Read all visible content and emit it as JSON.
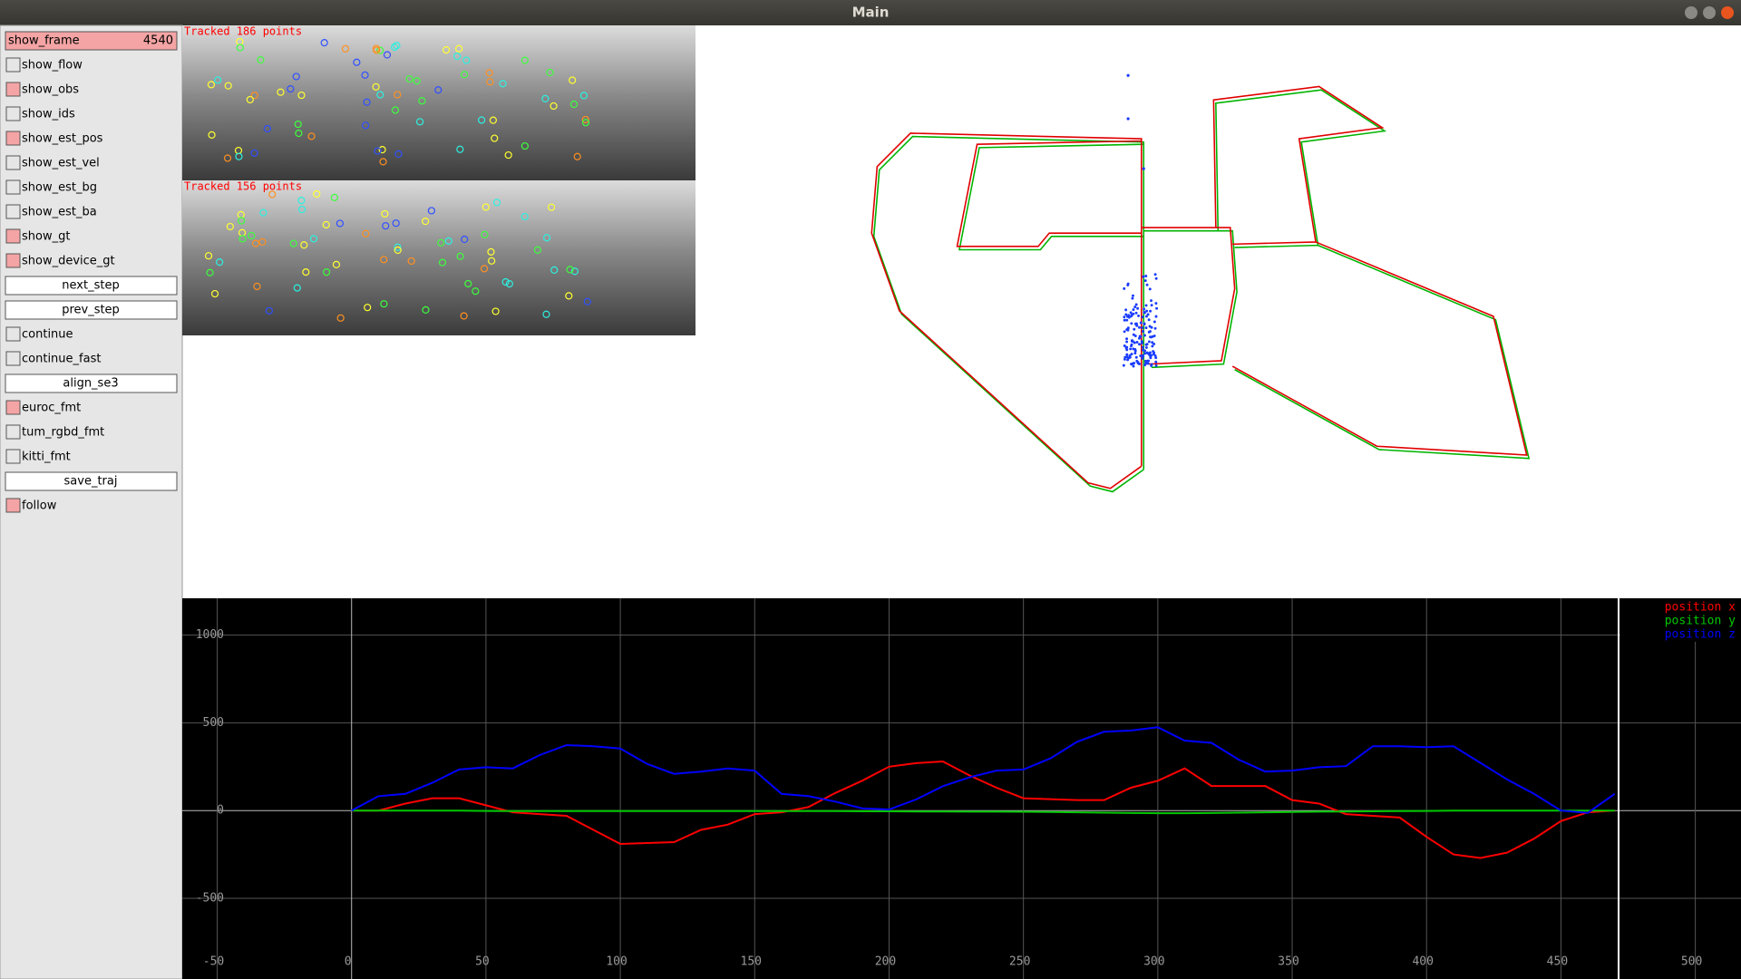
{
  "window": {
    "title": "Main"
  },
  "panel": {
    "items": [
      {
        "label": "show_frame",
        "kind": "slider",
        "value": 4540
      },
      {
        "label": "show_flow",
        "kind": "checkbox",
        "checked": false
      },
      {
        "label": "show_obs",
        "kind": "checkbox",
        "checked": true
      },
      {
        "label": "show_ids",
        "kind": "checkbox",
        "checked": false
      },
      {
        "label": "show_est_pos",
        "kind": "checkbox",
        "checked": true
      },
      {
        "label": "show_est_vel",
        "kind": "checkbox",
        "checked": false
      },
      {
        "label": "show_est_bg",
        "kind": "checkbox",
        "checked": false
      },
      {
        "label": "show_est_ba",
        "kind": "checkbox",
        "checked": false
      },
      {
        "label": "show_gt",
        "kind": "checkbox",
        "checked": true
      },
      {
        "label": "show_device_gt",
        "kind": "checkbox",
        "checked": true
      },
      {
        "label": "next_step",
        "kind": "button"
      },
      {
        "label": "prev_step",
        "kind": "button"
      },
      {
        "label": "continue",
        "kind": "checkbox",
        "checked": false
      },
      {
        "label": "continue_fast",
        "kind": "checkbox",
        "checked": false
      },
      {
        "label": "align_se3",
        "kind": "button"
      },
      {
        "label": "euroc_fmt",
        "kind": "checkbox",
        "checked": true
      },
      {
        "label": "tum_rgbd_fmt",
        "kind": "checkbox",
        "checked": false
      },
      {
        "label": "kitti_fmt",
        "kind": "checkbox",
        "checked": false
      },
      {
        "label": "save_traj",
        "kind": "button"
      },
      {
        "label": "follow",
        "kind": "checkbox",
        "checked": true
      }
    ]
  },
  "images": [
    {
      "caption": "Tracked 186 points"
    },
    {
      "caption": "Tracked 156 points"
    }
  ],
  "chart_data": {
    "type": "line",
    "x": [
      0,
      10,
      20,
      30,
      40,
      50,
      60,
      70,
      80,
      90,
      100,
      110,
      120,
      130,
      140,
      150,
      160,
      170,
      180,
      190,
      200,
      210,
      220,
      230,
      240,
      250,
      260,
      270,
      280,
      290,
      300,
      310,
      320,
      330,
      340,
      350,
      360,
      370,
      380,
      390,
      400,
      410,
      420,
      430,
      440,
      450,
      460,
      470
    ],
    "series": [
      {
        "name": "position x",
        "color": "#ff0000",
        "values": [
          0,
          0,
          40,
          70,
          70,
          30,
          -10,
          -20,
          -30,
          -110,
          -190,
          -185,
          -180,
          -110,
          -80,
          -20,
          -10,
          20,
          100,
          170,
          250,
          270,
          280,
          200,
          130,
          70,
          65,
          60,
          60,
          130,
          170,
          240,
          140,
          140,
          140,
          60,
          40,
          -20,
          -30,
          -40,
          -150,
          -250,
          -270,
          -240,
          -160,
          -60,
          -10,
          0
        ]
      },
      {
        "name": "position y",
        "color": "#00c800",
        "values": [
          0,
          0,
          0,
          0,
          0,
          -2,
          -3,
          -3,
          -3,
          -3,
          -3,
          -3,
          -3,
          -3,
          -3,
          -3,
          -3,
          -3,
          -3,
          -4,
          -4,
          -5,
          -5,
          -6,
          -6,
          -7,
          -8,
          -10,
          -12,
          -14,
          -15,
          -15,
          -14,
          -12,
          -10,
          -8,
          -6,
          -5,
          -4,
          -3,
          -2,
          0,
          0,
          0,
          0,
          0,
          0,
          0
        ]
      },
      {
        "name": "position z",
        "color": "#0000ff",
        "values": [
          0,
          82,
          95,
          158,
          234,
          247,
          240,
          316,
          373,
          367,
          354,
          266,
          209,
          222,
          240,
          228,
          95,
          82,
          51,
          13,
          6,
          63,
          139,
          190,
          228,
          234,
          297,
          392,
          449,
          456,
          475,
          399,
          386,
          291,
          222,
          228,
          247,
          253,
          367,
          367,
          361,
          367,
          272,
          177,
          95,
          0,
          -13,
          95
        ]
      }
    ],
    "xlim": [
      -63,
      517
    ],
    "ylim": [
      -960,
      1210
    ],
    "xticks": [
      -50,
      0,
      50,
      100,
      150,
      200,
      250,
      300,
      350,
      400,
      450,
      500
    ],
    "yticks": [
      -500,
      0,
      500,
      1000
    ],
    "grid": true,
    "legend": "top-right"
  }
}
